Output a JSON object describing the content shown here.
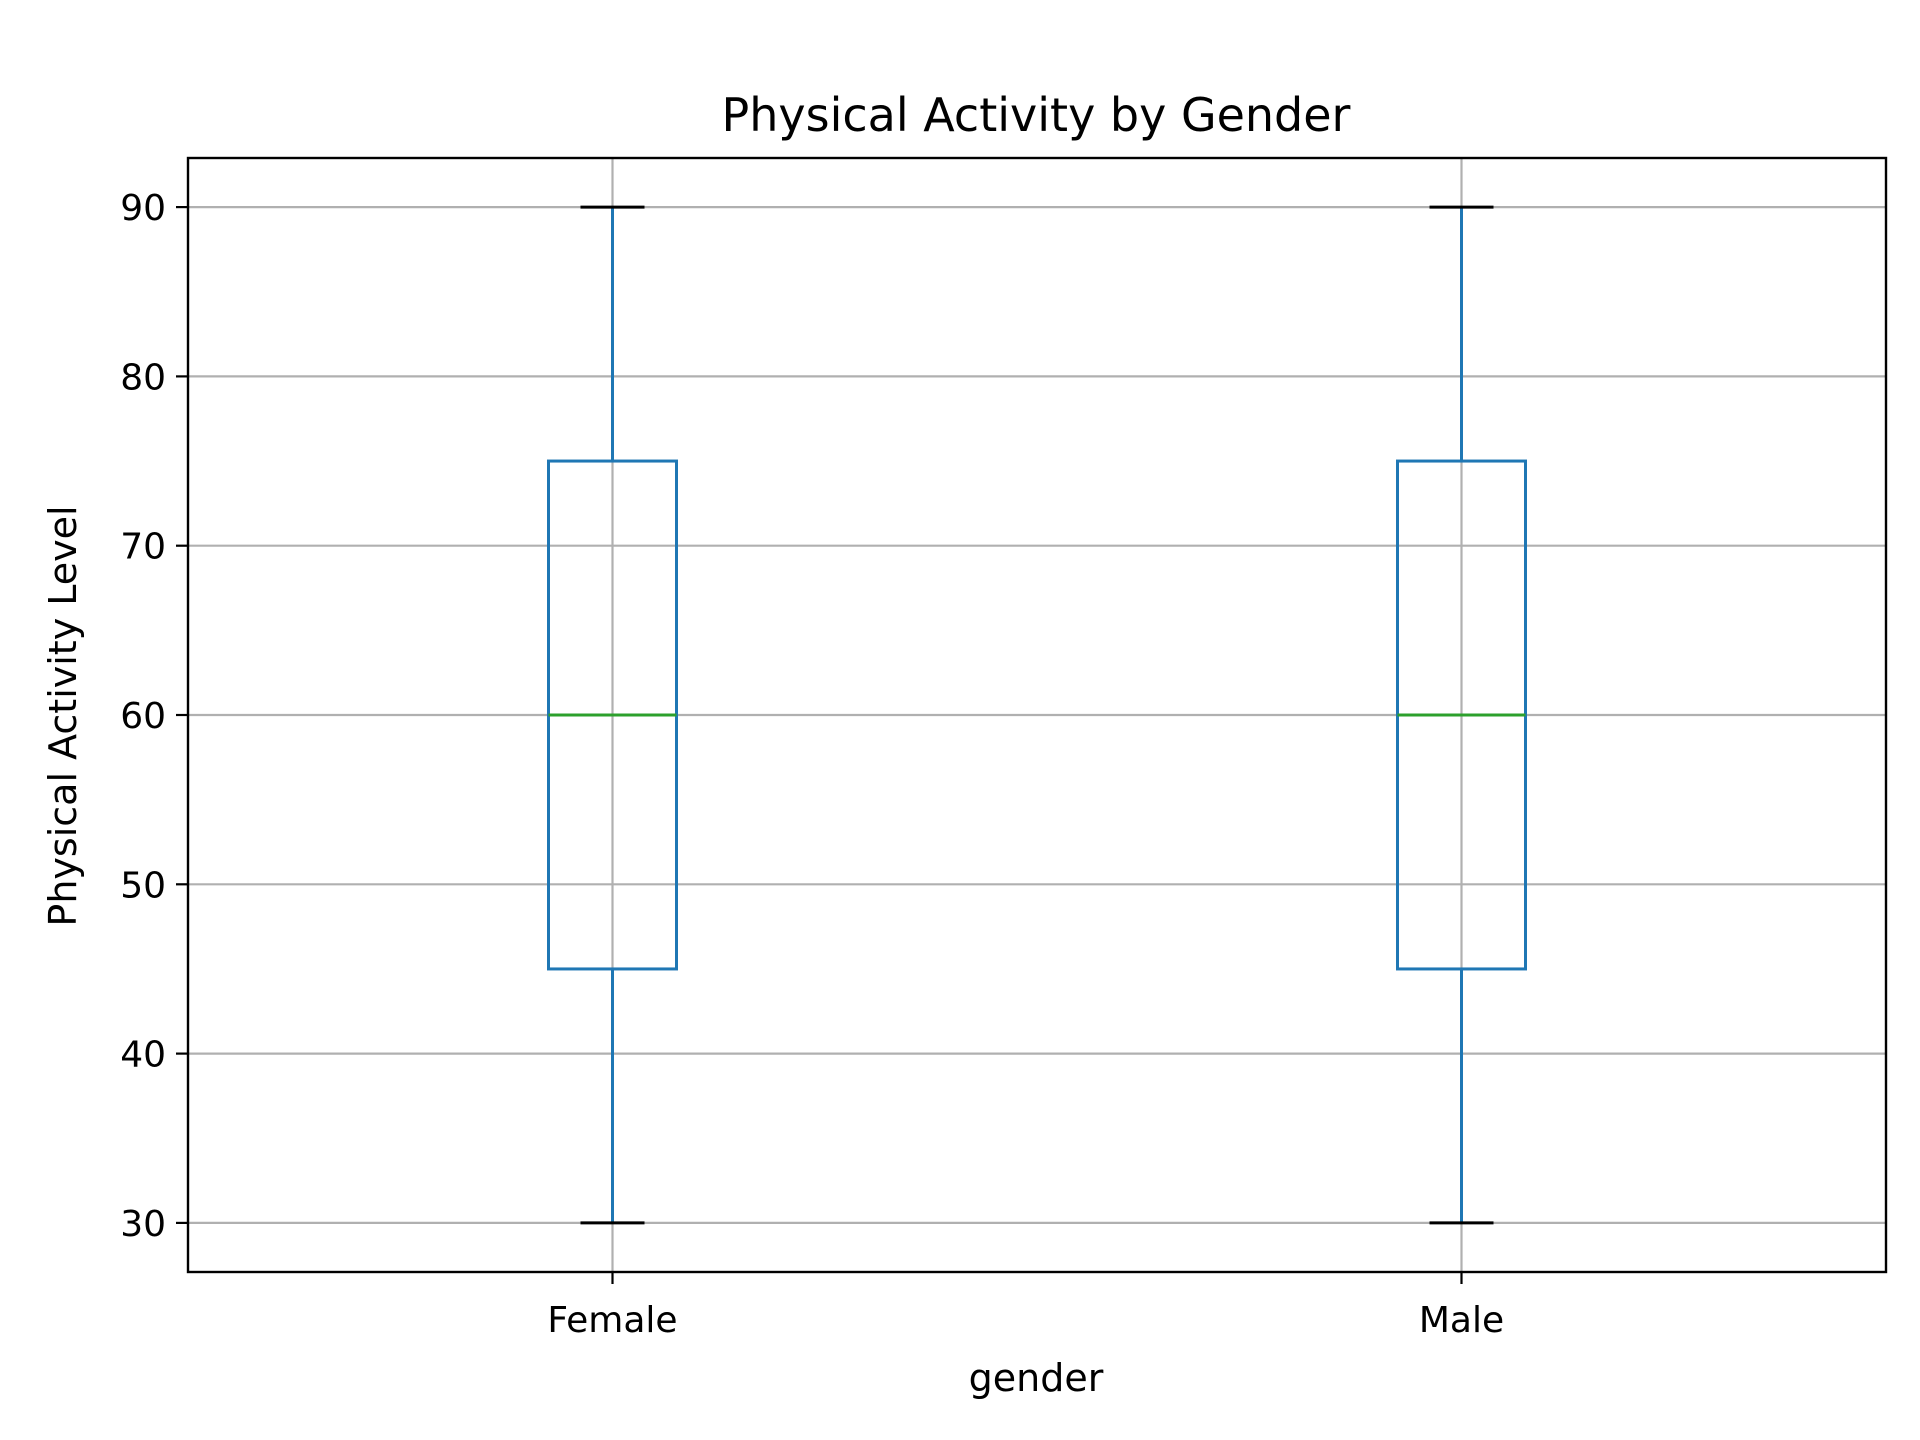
{
  "chart_data": {
    "type": "box",
    "title": "Physical Activity by Gender",
    "xlabel": "gender",
    "ylabel": "Physical Activity Level",
    "categories": [
      "Female",
      "Male"
    ],
    "boxes": [
      {
        "category": "Female",
        "whisker_low": 30,
        "q1": 45,
        "median": 60,
        "q3": 75,
        "whisker_high": 90
      },
      {
        "category": "Male",
        "whisker_low": 30,
        "q1": 45,
        "median": 60,
        "q3": 75,
        "whisker_high": 90
      }
    ],
    "yticks": [
      30,
      40,
      50,
      60,
      70,
      80,
      90
    ],
    "ylim": [
      27.1,
      92.9
    ],
    "grid": true,
    "colors": {
      "box": "#1f77b4",
      "median": "#2ca02c",
      "cap": "#000000",
      "grid": "#b0b0b0",
      "axes": "#000000"
    }
  }
}
